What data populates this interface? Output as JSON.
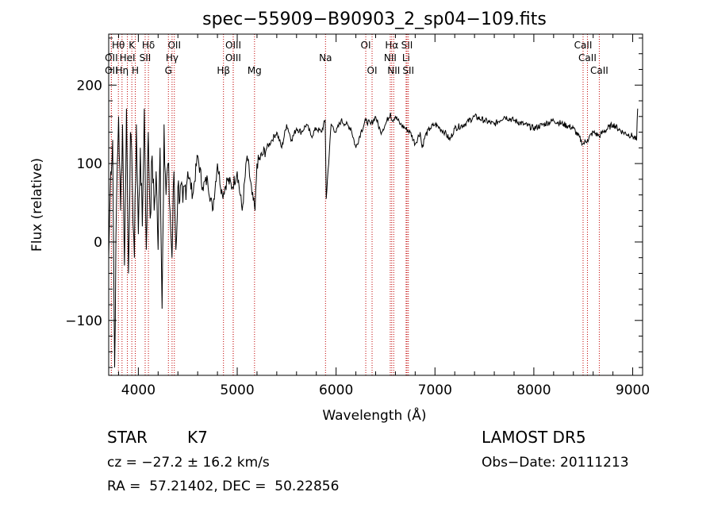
{
  "chart_data": {
    "type": "line",
    "title": "spec−55909−B90903_2_sp04−109.fits",
    "xlabel": "Wavelength (Å)",
    "ylabel": "Flux (relative)",
    "xlim": [
      3700,
      9100
    ],
    "ylim": [
      -170,
      265
    ],
    "xticks": [
      4000,
      5000,
      6000,
      7000,
      8000,
      9000
    ],
    "xtick_labels": [
      "4000",
      "5000",
      "6000",
      "7000",
      "8000",
      "9000"
    ],
    "yticks": [
      -100,
      0,
      100,
      200
    ],
    "ytick_labels": [
      "−100",
      "0",
      "100",
      "200"
    ],
    "grid": false,
    "series": [
      {
        "values_note_free": true,
        "x": [
          3700,
          3720,
          3740,
          3760,
          3780,
          3800,
          3820,
          3840,
          3860,
          3880,
          3900,
          3920,
          3940,
          3960,
          3980,
          4000,
          4020,
          4040,
          4060,
          4080,
          4100,
          4120,
          4140,
          4160,
          4180,
          4200,
          4220,
          4240,
          4260,
          4280,
          4300,
          4320,
          4340,
          4360,
          4380,
          4400,
          4450,
          4500,
          4550,
          4600,
          4650,
          4700,
          4750,
          4800,
          4850,
          4900,
          4950,
          5000,
          5050,
          5100,
          5150,
          5180,
          5200,
          5250,
          5300,
          5350,
          5400,
          5450,
          5500,
          5550,
          5600,
          5650,
          5700,
          5750,
          5800,
          5850,
          5890,
          5900,
          5950,
          6000,
          6050,
          6100,
          6150,
          6200,
          6250,
          6300,
          6350,
          6400,
          6450,
          6500,
          6550,
          6563,
          6600,
          6650,
          6700,
          6750,
          6800,
          6850,
          6870,
          6900,
          6950,
          7000,
          7050,
          7100,
          7150,
          7200,
          7300,
          7400,
          7500,
          7600,
          7700,
          7800,
          7900,
          8000,
          8100,
          8200,
          8300,
          8400,
          8498,
          8542,
          8600,
          8662,
          8700,
          8800,
          8900,
          9000,
          9040,
          9050
        ],
        "y": [
          -20,
          90,
          130,
          -160,
          60,
          160,
          40,
          150,
          -30,
          170,
          -40,
          140,
          70,
          -20,
          150,
          10,
          120,
          20,
          170,
          -10,
          140,
          30,
          110,
          40,
          90,
          -10,
          120,
          -85,
          150,
          60,
          100,
          40,
          -20,
          90,
          -10,
          70,
          50,
          90,
          60,
          110,
          70,
          80,
          40,
          100,
          60,
          80,
          70,
          90,
          40,
          110,
          60,
          40,
          100,
          110,
          120,
          130,
          140,
          120,
          150,
          130,
          145,
          140,
          150,
          135,
          145,
          140,
          155,
          55,
          150,
          140,
          155,
          150,
          145,
          120,
          140,
          155,
          150,
          160,
          140,
          150,
          165,
          155,
          160,
          150,
          145,
          140,
          125,
          140,
          120,
          135,
          145,
          150,
          145,
          140,
          130,
          145,
          150,
          160,
          155,
          150,
          160,
          155,
          150,
          145,
          150,
          155,
          150,
          145,
          125,
          130,
          140,
          135,
          140,
          150,
          140,
          135,
          130,
          170
        ]
      }
    ],
    "lines": [
      {
        "label": "Hθ",
        "x": 3798,
        "row": 0
      },
      {
        "label": "K",
        "x": 3934,
        "row": 0
      },
      {
        "label": "Hδ",
        "x": 4102,
        "row": 0
      },
      {
        "label": "OII",
        "x": 4364,
        "row": 0
      },
      {
        "label": "OIII",
        "x": 4960,
        "row": 0
      },
      {
        "label": "OI",
        "x": 6300,
        "row": 0
      },
      {
        "label": "Hα",
        "x": 6563,
        "row": 0
      },
      {
        "label": "SII",
        "x": 6717,
        "row": 0
      },
      {
        "label": "CaII",
        "x": 8498,
        "row": 0
      },
      {
        "label": "OII",
        "x": 3727,
        "row": 1
      },
      {
        "label": "HeI",
        "x": 3889,
        "row": 1
      },
      {
        "label": "SII",
        "x": 4069,
        "row": 1
      },
      {
        "label": "Hγ",
        "x": 4341,
        "row": 1
      },
      {
        "label": "OIII",
        "x": 4959,
        "row": 1
      },
      {
        "label": "Na",
        "x": 5893,
        "row": 1
      },
      {
        "label": "NII",
        "x": 6548,
        "row": 1
      },
      {
        "label": "Li",
        "x": 6708,
        "row": 1
      },
      {
        "label": "CaII",
        "x": 8542,
        "row": 1
      },
      {
        "label": "OII",
        "x": 3727,
        "row": 2
      },
      {
        "label": "Hη",
        "x": 3835,
        "row": 2
      },
      {
        "label": "H",
        "x": 3969,
        "row": 2
      },
      {
        "label": "G",
        "x": 4304,
        "row": 2
      },
      {
        "label": "Hβ",
        "x": 4861,
        "row": 2
      },
      {
        "label": "Mg",
        "x": 5175,
        "row": 2
      },
      {
        "label": "OI",
        "x": 6364,
        "row": 2
      },
      {
        "label": "NII",
        "x": 6583,
        "row": 2
      },
      {
        "label": "SII",
        "x": 6731,
        "row": 2
      },
      {
        "label": "CaII",
        "x": 8662,
        "row": 2
      }
    ]
  },
  "info": {
    "object_class": "STAR",
    "subclass": "K7",
    "survey": "LAMOST DR5",
    "cz": "cz = −27.2 ± 16.2 km/s",
    "obs_date": "Obs−Date: 20111213",
    "coords": "RA =  57.21402, DEC =  50.22856"
  }
}
